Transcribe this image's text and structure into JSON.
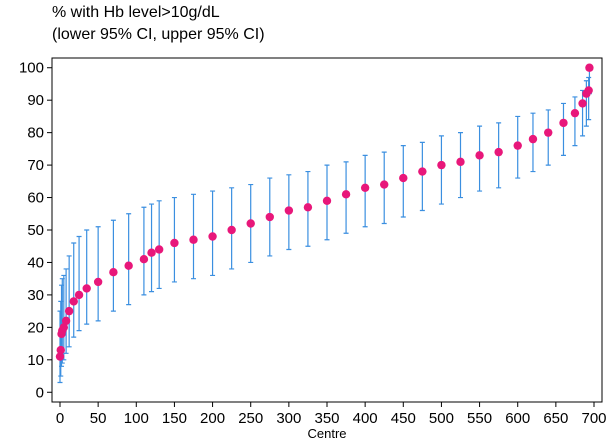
{
  "chart_data": {
    "type": "scatter",
    "title": "",
    "ylabel_lines": [
      "% with Hb level>10g/dL",
      "(lower 95% CI, upper 95% CI)"
    ],
    "xlabel": "Centre",
    "xlim": [
      0,
      700
    ],
    "ylim": [
      0,
      100
    ],
    "x_ticks": [
      0,
      50,
      100,
      150,
      200,
      250,
      300,
      350,
      400,
      450,
      500,
      550,
      600,
      650,
      700
    ],
    "y_ticks": [
      0,
      10,
      20,
      30,
      40,
      50,
      60,
      70,
      80,
      90,
      100
    ],
    "grid": false,
    "legend": "none",
    "colors": {
      "point": "#e8177a",
      "error_bar": "#3b8fe0"
    },
    "series": [
      {
        "x": [
          0,
          1,
          2,
          3,
          5,
          8,
          12,
          18,
          25,
          35,
          50,
          70,
          90,
          110,
          120,
          130,
          150,
          175,
          200,
          225,
          250,
          275,
          300,
          325,
          350,
          375,
          400,
          425,
          450,
          475,
          500,
          525,
          550,
          575,
          600,
          620,
          640,
          660,
          675,
          685,
          690,
          693,
          694
        ],
        "y": [
          11,
          13,
          18,
          19,
          20,
          22,
          25,
          28,
          30,
          32,
          34,
          37,
          39,
          41,
          43,
          44,
          46,
          47,
          48,
          50,
          52,
          54,
          56,
          57,
          59,
          61,
          63,
          64,
          66,
          68,
          70,
          71,
          73,
          74,
          76,
          78,
          80,
          83,
          86,
          89,
          92,
          93,
          100
        ],
        "ci_lower": [
          3,
          5,
          8,
          9,
          10,
          12,
          14,
          17,
          19,
          21,
          22,
          25,
          27,
          30,
          31,
          32,
          34,
          35,
          36,
          38,
          40,
          42,
          44,
          45,
          47,
          49,
          51,
          52,
          54,
          56,
          58,
          60,
          62,
          63,
          66,
          68,
          70,
          73,
          76,
          79,
          82,
          84,
          92
        ],
        "ci_upper": [
          25,
          28,
          33,
          35,
          36,
          38,
          42,
          46,
          48,
          50,
          51,
          53,
          55,
          57,
          58,
          59,
          60,
          61,
          62,
          63,
          64,
          66,
          67,
          68,
          70,
          71,
          73,
          74,
          76,
          77,
          79,
          80,
          82,
          83,
          85,
          86,
          87,
          89,
          91,
          93,
          96,
          97,
          100
        ]
      }
    ]
  }
}
